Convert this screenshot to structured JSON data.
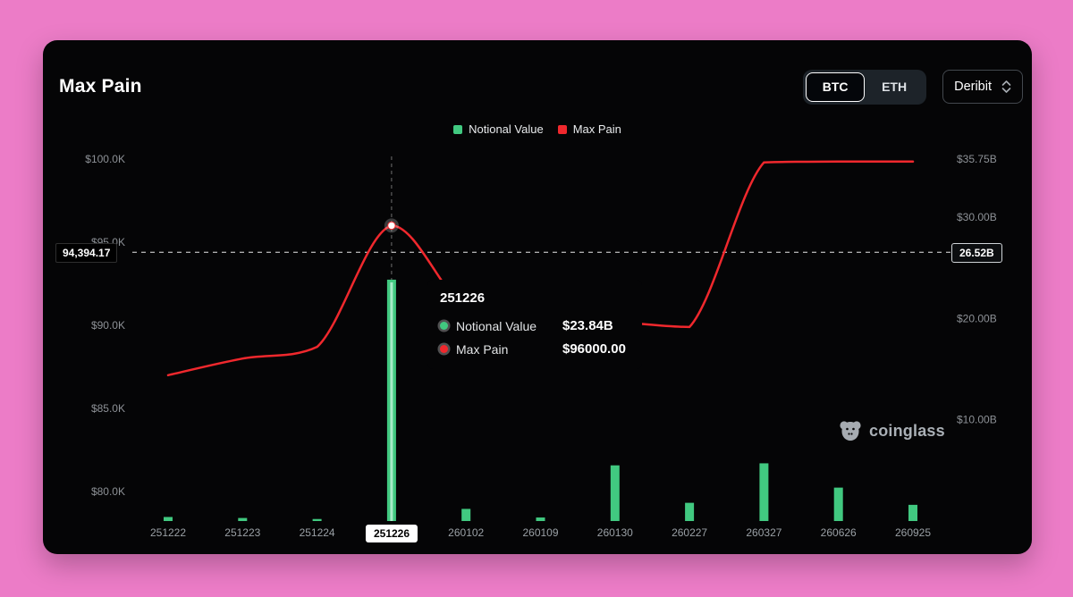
{
  "header": {
    "title": "Max Pain",
    "coin_toggle": {
      "options": [
        "BTC",
        "ETH"
      ],
      "selected": "BTC"
    },
    "exchange_select": {
      "value": "Deribit"
    }
  },
  "legend": [
    {
      "label": "Notional Value",
      "color": "#41c980"
    },
    {
      "label": "Max Pain",
      "color": "#f0282d"
    }
  ],
  "tooltip": {
    "title": "251226",
    "rows": [
      {
        "label": "Notional Value",
        "value": "$23.84B",
        "color": "#41c980"
      },
      {
        "label": "Max Pain",
        "value": "$96000.00",
        "color": "#f0282d"
      }
    ]
  },
  "watermark": {
    "text": "coinglass"
  },
  "colors": {
    "page_background": "#ec7cc7",
    "panel_background": "#050506"
  },
  "chart_data": {
    "type": "bar+line",
    "title": "Max Pain",
    "grid": false,
    "legend_position": "top",
    "categories": [
      "251222",
      "251223",
      "251224",
      "251226",
      "260102",
      "260109",
      "260130",
      "260227",
      "260327",
      "260626",
      "260925"
    ],
    "series": [
      {
        "name": "Notional Value",
        "type": "bar",
        "axis": "right",
        "unit": "USD billions",
        "color": "#41c980",
        "values": [
          0.4,
          0.3,
          0.2,
          23.84,
          1.2,
          0.35,
          5.5,
          1.8,
          5.7,
          3.3,
          1.6
        ]
      },
      {
        "name": "Max Pain",
        "type": "line",
        "axis": "left",
        "unit": "USD",
        "color": "#f0282d",
        "values": [
          87000,
          88000,
          88700,
          96000,
          91000,
          90300,
          90200,
          89900,
          99800,
          99850,
          99850
        ]
      }
    ],
    "left_axis": {
      "min": 80000,
      "max": 100000,
      "ticks": [
        {
          "label": "$100.0K",
          "value": 100000
        },
        {
          "label": "$95.0K",
          "value": 95000
        },
        {
          "label": "$90.0K",
          "value": 90000
        },
        {
          "label": "$85.0K",
          "value": 85000
        },
        {
          "label": "$80.0K",
          "value": 80000
        }
      ]
    },
    "right_axis": {
      "min": 0,
      "max": 35.75,
      "ticks": [
        {
          "label": "$35.75B",
          "value": 35.75
        },
        {
          "label": "$30.00B",
          "value": 30
        },
        {
          "label": "$20.00B",
          "value": 20
        },
        {
          "label": "$10.00B",
          "value": 10
        }
      ]
    },
    "crosshair": {
      "x_index": 3,
      "x_label": "251226",
      "y_value": 94394.17,
      "y_label_left": "94,394.17",
      "y_label_right": "26.52B",
      "marker_value": 96000
    }
  }
}
